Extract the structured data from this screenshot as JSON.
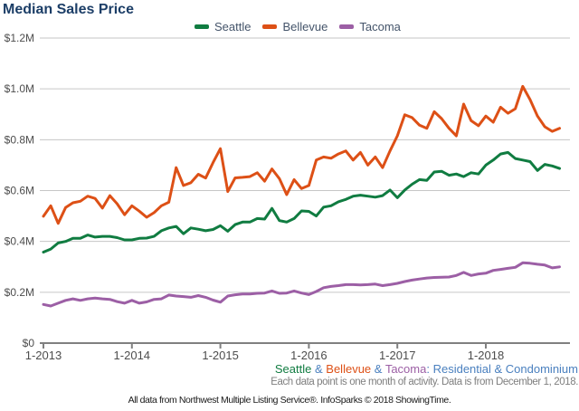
{
  "title": "Median Sales Price",
  "chart_data": {
    "type": "line",
    "title": "Median Sales Price",
    "x_unit": "month",
    "x_range": [
      "2013-01",
      "2018-11"
    ],
    "x_tick_labels": [
      "1-2013",
      "1-2014",
      "1-2015",
      "1-2016",
      "1-2017",
      "1-2018"
    ],
    "y_tick_labels": [
      "$0",
      "$0.2M",
      "$0.4M",
      "$0.6M",
      "$0.8M",
      "$1.0M",
      "$1.2M"
    ],
    "ylim": [
      0,
      1.2
    ],
    "y_unit": "millions USD",
    "grid": true,
    "legend_position": "top",
    "series": [
      {
        "name": "Seattle",
        "color": "#107c41",
        "values": [
          0.358,
          0.37,
          0.394,
          0.4,
          0.412,
          0.412,
          0.425,
          0.417,
          0.42,
          0.42,
          0.415,
          0.406,
          0.406,
          0.412,
          0.413,
          0.42,
          0.442,
          0.453,
          0.459,
          0.43,
          0.453,
          0.448,
          0.442,
          0.447,
          0.462,
          0.44,
          0.466,
          0.476,
          0.476,
          0.49,
          0.488,
          0.53,
          0.482,
          0.476,
          0.49,
          0.52,
          0.518,
          0.5,
          0.535,
          0.54,
          0.556,
          0.565,
          0.578,
          0.582,
          0.578,
          0.574,
          0.58,
          0.602,
          0.572,
          0.602,
          0.625,
          0.643,
          0.64,
          0.673,
          0.676,
          0.66,
          0.665,
          0.655,
          0.67,
          0.665,
          0.7,
          0.72,
          0.744,
          0.75,
          0.726,
          0.72,
          0.714,
          0.679,
          0.703,
          0.697,
          0.687
        ]
      },
      {
        "name": "Bellevue",
        "color": "#dd5016",
        "values": [
          0.499,
          0.54,
          0.471,
          0.533,
          0.552,
          0.558,
          0.578,
          0.569,
          0.531,
          0.58,
          0.548,
          0.505,
          0.54,
          0.519,
          0.495,
          0.513,
          0.54,
          0.554,
          0.69,
          0.62,
          0.631,
          0.664,
          0.649,
          0.71,
          0.765,
          0.596,
          0.65,
          0.652,
          0.655,
          0.67,
          0.637,
          0.685,
          0.647,
          0.584,
          0.643,
          0.608,
          0.62,
          0.72,
          0.732,
          0.727,
          0.744,
          0.756,
          0.72,
          0.75,
          0.7,
          0.732,
          0.69,
          0.756,
          0.815,
          0.898,
          0.887,
          0.857,
          0.845,
          0.91,
          0.883,
          0.845,
          0.815,
          0.94,
          0.875,
          0.855,
          0.893,
          0.869,
          0.928,
          0.904,
          0.922,
          1.01,
          0.958,
          0.893,
          0.851,
          0.833,
          0.845
        ]
      },
      {
        "name": "Tacoma",
        "color": "#9c5fa5",
        "values": [
          0.152,
          0.146,
          0.157,
          0.168,
          0.174,
          0.168,
          0.174,
          0.177,
          0.174,
          0.172,
          0.163,
          0.157,
          0.168,
          0.157,
          0.162,
          0.172,
          0.174,
          0.189,
          0.185,
          0.183,
          0.18,
          0.187,
          0.18,
          0.169,
          0.161,
          0.185,
          0.19,
          0.193,
          0.193,
          0.196,
          0.197,
          0.205,
          0.196,
          0.197,
          0.205,
          0.197,
          0.191,
          0.203,
          0.218,
          0.223,
          0.226,
          0.23,
          0.23,
          0.229,
          0.23,
          0.232,
          0.226,
          0.23,
          0.235,
          0.242,
          0.248,
          0.252,
          0.256,
          0.258,
          0.259,
          0.26,
          0.266,
          0.278,
          0.266,
          0.272,
          0.275,
          0.286,
          0.29,
          0.294,
          0.298,
          0.316,
          0.314,
          0.31,
          0.307,
          0.296,
          0.3
        ]
      }
    ]
  },
  "footer": {
    "series_separator": " & ",
    "series_suffix": ": Residential & Condominium",
    "note": "Each data point is one month of activity. Data is from December 1, 2018.",
    "attribution": "All data from Northwest Multiple Listing Service®. InfoSparks © 2018 ShowingTime.",
    "link_color": "#4a80bf"
  }
}
